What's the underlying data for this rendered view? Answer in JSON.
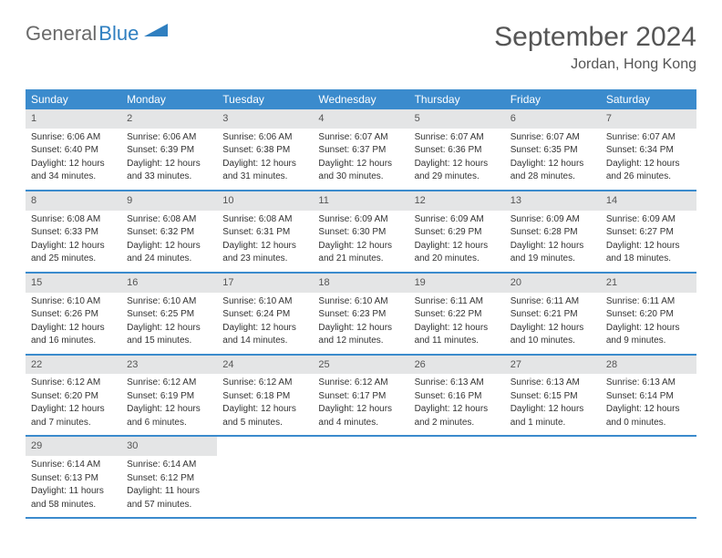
{
  "logo": {
    "text1": "General",
    "text2": "Blue"
  },
  "title": "September 2024",
  "location": "Jordan, Hong Kong",
  "colors": {
    "header_bg": "#3b8bcd",
    "header_text": "#ffffff",
    "daynum_bg": "#e4e5e6",
    "border": "#3b8bcd",
    "logo_gray": "#6a6a6a",
    "logo_blue": "#2f7fc0"
  },
  "day_names": [
    "Sunday",
    "Monday",
    "Tuesday",
    "Wednesday",
    "Thursday",
    "Friday",
    "Saturday"
  ],
  "weeks": [
    [
      {
        "n": "1",
        "sr": "Sunrise: 6:06 AM",
        "ss": "Sunset: 6:40 PM",
        "d1": "Daylight: 12 hours",
        "d2": "and 34 minutes."
      },
      {
        "n": "2",
        "sr": "Sunrise: 6:06 AM",
        "ss": "Sunset: 6:39 PM",
        "d1": "Daylight: 12 hours",
        "d2": "and 33 minutes."
      },
      {
        "n": "3",
        "sr": "Sunrise: 6:06 AM",
        "ss": "Sunset: 6:38 PM",
        "d1": "Daylight: 12 hours",
        "d2": "and 31 minutes."
      },
      {
        "n": "4",
        "sr": "Sunrise: 6:07 AM",
        "ss": "Sunset: 6:37 PM",
        "d1": "Daylight: 12 hours",
        "d2": "and 30 minutes."
      },
      {
        "n": "5",
        "sr": "Sunrise: 6:07 AM",
        "ss": "Sunset: 6:36 PM",
        "d1": "Daylight: 12 hours",
        "d2": "and 29 minutes."
      },
      {
        "n": "6",
        "sr": "Sunrise: 6:07 AM",
        "ss": "Sunset: 6:35 PM",
        "d1": "Daylight: 12 hours",
        "d2": "and 28 minutes."
      },
      {
        "n": "7",
        "sr": "Sunrise: 6:07 AM",
        "ss": "Sunset: 6:34 PM",
        "d1": "Daylight: 12 hours",
        "d2": "and 26 minutes."
      }
    ],
    [
      {
        "n": "8",
        "sr": "Sunrise: 6:08 AM",
        "ss": "Sunset: 6:33 PM",
        "d1": "Daylight: 12 hours",
        "d2": "and 25 minutes."
      },
      {
        "n": "9",
        "sr": "Sunrise: 6:08 AM",
        "ss": "Sunset: 6:32 PM",
        "d1": "Daylight: 12 hours",
        "d2": "and 24 minutes."
      },
      {
        "n": "10",
        "sr": "Sunrise: 6:08 AM",
        "ss": "Sunset: 6:31 PM",
        "d1": "Daylight: 12 hours",
        "d2": "and 23 minutes."
      },
      {
        "n": "11",
        "sr": "Sunrise: 6:09 AM",
        "ss": "Sunset: 6:30 PM",
        "d1": "Daylight: 12 hours",
        "d2": "and 21 minutes."
      },
      {
        "n": "12",
        "sr": "Sunrise: 6:09 AM",
        "ss": "Sunset: 6:29 PM",
        "d1": "Daylight: 12 hours",
        "d2": "and 20 minutes."
      },
      {
        "n": "13",
        "sr": "Sunrise: 6:09 AM",
        "ss": "Sunset: 6:28 PM",
        "d1": "Daylight: 12 hours",
        "d2": "and 19 minutes."
      },
      {
        "n": "14",
        "sr": "Sunrise: 6:09 AM",
        "ss": "Sunset: 6:27 PM",
        "d1": "Daylight: 12 hours",
        "d2": "and 18 minutes."
      }
    ],
    [
      {
        "n": "15",
        "sr": "Sunrise: 6:10 AM",
        "ss": "Sunset: 6:26 PM",
        "d1": "Daylight: 12 hours",
        "d2": "and 16 minutes."
      },
      {
        "n": "16",
        "sr": "Sunrise: 6:10 AM",
        "ss": "Sunset: 6:25 PM",
        "d1": "Daylight: 12 hours",
        "d2": "and 15 minutes."
      },
      {
        "n": "17",
        "sr": "Sunrise: 6:10 AM",
        "ss": "Sunset: 6:24 PM",
        "d1": "Daylight: 12 hours",
        "d2": "and 14 minutes."
      },
      {
        "n": "18",
        "sr": "Sunrise: 6:10 AM",
        "ss": "Sunset: 6:23 PM",
        "d1": "Daylight: 12 hours",
        "d2": "and 12 minutes."
      },
      {
        "n": "19",
        "sr": "Sunrise: 6:11 AM",
        "ss": "Sunset: 6:22 PM",
        "d1": "Daylight: 12 hours",
        "d2": "and 11 minutes."
      },
      {
        "n": "20",
        "sr": "Sunrise: 6:11 AM",
        "ss": "Sunset: 6:21 PM",
        "d1": "Daylight: 12 hours",
        "d2": "and 10 minutes."
      },
      {
        "n": "21",
        "sr": "Sunrise: 6:11 AM",
        "ss": "Sunset: 6:20 PM",
        "d1": "Daylight: 12 hours",
        "d2": "and 9 minutes."
      }
    ],
    [
      {
        "n": "22",
        "sr": "Sunrise: 6:12 AM",
        "ss": "Sunset: 6:20 PM",
        "d1": "Daylight: 12 hours",
        "d2": "and 7 minutes."
      },
      {
        "n": "23",
        "sr": "Sunrise: 6:12 AM",
        "ss": "Sunset: 6:19 PM",
        "d1": "Daylight: 12 hours",
        "d2": "and 6 minutes."
      },
      {
        "n": "24",
        "sr": "Sunrise: 6:12 AM",
        "ss": "Sunset: 6:18 PM",
        "d1": "Daylight: 12 hours",
        "d2": "and 5 minutes."
      },
      {
        "n": "25",
        "sr": "Sunrise: 6:12 AM",
        "ss": "Sunset: 6:17 PM",
        "d1": "Daylight: 12 hours",
        "d2": "and 4 minutes."
      },
      {
        "n": "26",
        "sr": "Sunrise: 6:13 AM",
        "ss": "Sunset: 6:16 PM",
        "d1": "Daylight: 12 hours",
        "d2": "and 2 minutes."
      },
      {
        "n": "27",
        "sr": "Sunrise: 6:13 AM",
        "ss": "Sunset: 6:15 PM",
        "d1": "Daylight: 12 hours",
        "d2": "and 1 minute."
      },
      {
        "n": "28",
        "sr": "Sunrise: 6:13 AM",
        "ss": "Sunset: 6:14 PM",
        "d1": "Daylight: 12 hours",
        "d2": "and 0 minutes."
      }
    ],
    [
      {
        "n": "29",
        "sr": "Sunrise: 6:14 AM",
        "ss": "Sunset: 6:13 PM",
        "d1": "Daylight: 11 hours",
        "d2": "and 58 minutes."
      },
      {
        "n": "30",
        "sr": "Sunrise: 6:14 AM",
        "ss": "Sunset: 6:12 PM",
        "d1": "Daylight: 11 hours",
        "d2": "and 57 minutes."
      },
      null,
      null,
      null,
      null,
      null
    ]
  ]
}
